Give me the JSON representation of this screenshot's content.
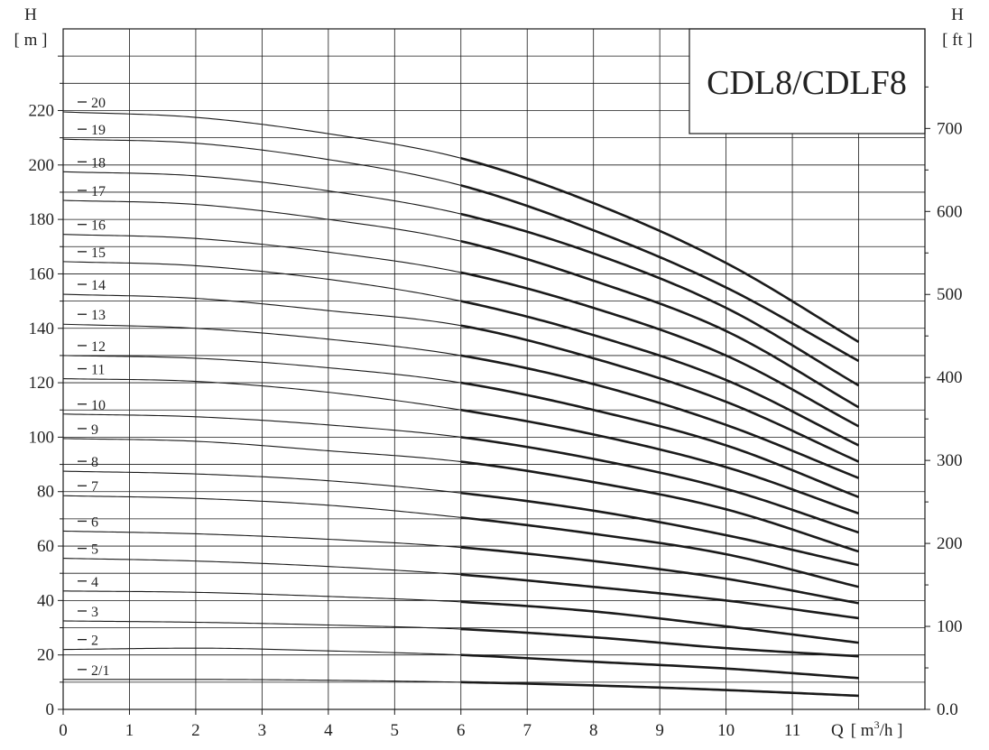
{
  "chart_data": {
    "type": "line",
    "title": "CDL8/CDLF8",
    "xlabel": "Q [ m³/h ]",
    "xlabel_parts": {
      "q": "Q",
      "open": "[ m",
      "sup": "3",
      "close": "/h ]"
    },
    "ylabel_left": {
      "symbol": "H",
      "unit": "[ m ]"
    },
    "ylabel_right": {
      "symbol": "H",
      "unit": "[ ft ]"
    },
    "xlim": [
      0,
      13
    ],
    "ylim_left": [
      0,
      250
    ],
    "ylim_right_ft": [
      0,
      820
    ],
    "x_ticks": [
      "0",
      "1",
      "2",
      "3",
      "4",
      "5",
      "6",
      "7",
      "8",
      "9",
      "10",
      "11"
    ],
    "y_ticks_left": [
      "0",
      "20",
      "40",
      "60",
      "80",
      "100",
      "120",
      "140",
      "160",
      "180",
      "200",
      "220"
    ],
    "y_ticks_right": [
      "0.0",
      "100",
      "200",
      "300",
      "400",
      "500",
      "600",
      "700"
    ],
    "grid": true,
    "recommended_range_q": [
      6,
      12
    ],
    "series": [
      {
        "name": "2/1",
        "x": [
          0,
          2,
          4,
          6,
          8,
          10,
          12
        ],
        "y": [
          11,
          11,
          10.7,
          10,
          8.8,
          7.1,
          5
        ]
      },
      {
        "name": "2",
        "x": [
          0,
          2,
          4,
          6,
          8,
          10,
          12
        ],
        "y": [
          22,
          22.5,
          21.5,
          20,
          17.5,
          15,
          11.5
        ]
      },
      {
        "name": "3",
        "x": [
          0,
          2,
          4,
          6,
          8,
          10,
          12
        ],
        "y": [
          32.5,
          32,
          31,
          29.5,
          26.5,
          22.5,
          19.5
        ]
      },
      {
        "name": "4",
        "x": [
          0,
          2,
          4,
          6,
          8,
          10,
          12
        ],
        "y": [
          43.5,
          43,
          41.5,
          39.5,
          36,
          30.5,
          24.5
        ]
      },
      {
        "name": "5",
        "x": [
          0,
          2,
          4,
          6,
          8,
          10,
          12
        ],
        "y": [
          55.5,
          54.5,
          52.5,
          49.5,
          45,
          40,
          33.5
        ]
      },
      {
        "name": "6",
        "x": [
          0,
          2,
          4,
          6,
          8,
          10,
          12
        ],
        "y": [
          65.5,
          64.5,
          62.5,
          59.5,
          54.5,
          48,
          39
        ]
      },
      {
        "name": "7",
        "x": [
          0,
          2,
          4,
          6,
          8,
          10,
          12
        ],
        "y": [
          78.5,
          77.5,
          75,
          70.5,
          64.5,
          57,
          45
        ]
      },
      {
        "name": "8",
        "x": [
          0,
          2,
          4,
          6,
          8,
          10,
          12
        ],
        "y": [
          87.5,
          86.5,
          84,
          79.5,
          73,
          64,
          53
        ]
      },
      {
        "name": "9",
        "x": [
          0,
          2,
          4,
          6,
          8,
          10,
          12
        ],
        "y": [
          99.5,
          98.5,
          95,
          91,
          83.5,
          73.5,
          58
        ]
      },
      {
        "name": "10",
        "x": [
          0,
          2,
          4,
          6,
          8,
          10,
          12
        ],
        "y": [
          108.5,
          107.5,
          104.5,
          100,
          92,
          81,
          65
        ]
      },
      {
        "name": "11",
        "x": [
          0,
          2,
          4,
          6,
          8,
          10,
          12
        ],
        "y": [
          121.5,
          120.5,
          116.5,
          110,
          101,
          89,
          72
        ]
      },
      {
        "name": "12",
        "x": [
          0,
          2,
          4,
          6,
          8,
          10,
          12
        ],
        "y": [
          130,
          129,
          125.5,
          120,
          110,
          97,
          78
        ]
      },
      {
        "name": "13",
        "x": [
          0,
          2,
          4,
          6,
          8,
          10,
          12
        ],
        "y": [
          141.5,
          140,
          136,
          130,
          119.5,
          104.5,
          85
        ]
      },
      {
        "name": "14",
        "x": [
          0,
          2,
          4,
          6,
          8,
          10,
          12
        ],
        "y": [
          152.5,
          151,
          146.5,
          141,
          129,
          113,
          91
        ]
      },
      {
        "name": "15",
        "x": [
          0,
          2,
          4,
          6,
          8,
          10,
          12
        ],
        "y": [
          164.5,
          163,
          158,
          150,
          137.5,
          121,
          97
        ]
      },
      {
        "name": "16",
        "x": [
          0,
          2,
          4,
          6,
          8,
          10,
          12
        ],
        "y": [
          174.5,
          173,
          168,
          160.5,
          147.5,
          130,
          104
        ]
      },
      {
        "name": "17",
        "x": [
          0,
          2,
          4,
          6,
          8,
          10,
          12
        ],
        "y": [
          187,
          185.5,
          180,
          172,
          157.5,
          139,
          111
        ]
      },
      {
        "name": "18",
        "x": [
          0,
          2,
          4,
          6,
          8,
          10,
          12
        ],
        "y": [
          197.5,
          196,
          190.5,
          182,
          167.5,
          147.5,
          119
        ]
      },
      {
        "name": "19",
        "x": [
          0,
          2,
          4,
          6,
          8,
          10,
          12
        ],
        "y": [
          209.5,
          208,
          202,
          192.5,
          176,
          155,
          128
        ]
      },
      {
        "name": "20",
        "x": [
          0,
          2,
          4,
          6,
          8,
          10,
          12
        ],
        "y": [
          219.5,
          217.5,
          211.5,
          202.5,
          186,
          164,
          135
        ]
      }
    ],
    "colors": {
      "line": "#1a1a1a",
      "grid": "#1a1a1a",
      "text": "#222222",
      "background": "#ffffff"
    }
  }
}
